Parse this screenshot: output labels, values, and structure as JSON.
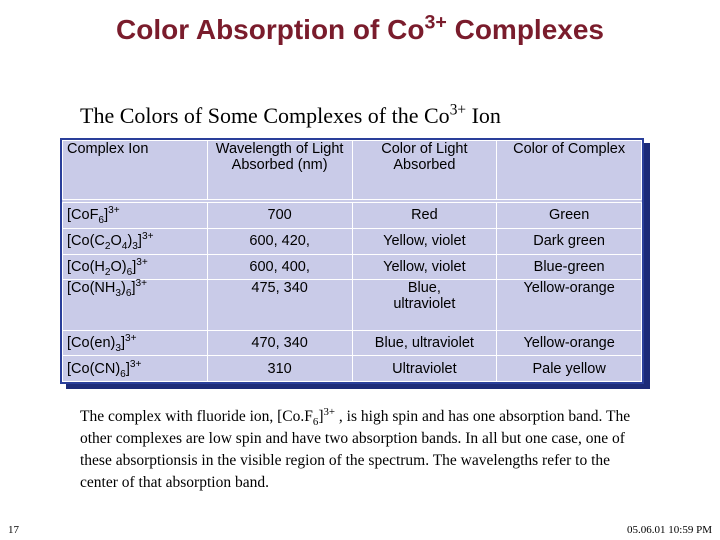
{
  "header": {
    "title": [
      {
        "text": "Color Absorption of Co"
      },
      {
        "text": "3+",
        "pos": "sup"
      },
      {
        "text": " Complexes"
      }
    ],
    "subtitle": [
      {
        "text": "The Colors of Some Complexes of the Co"
      },
      {
        "text": "3+",
        "pos": "sup"
      },
      {
        "text": " Ion"
      }
    ]
  },
  "table": {
    "columns": [
      "Complex Ion",
      "Wavelength of Light Absorbed (nm)",
      "Color of Light Absorbed",
      "Color of Complex"
    ],
    "rows": [
      [
        [
          {
            "text": "[CoF"
          },
          {
            "text": "6",
            "pos": "sub"
          },
          {
            "text": "]"
          },
          {
            "text": "3+",
            "pos": "sup"
          }
        ],
        "700",
        "Red",
        "Green"
      ],
      [
        [
          {
            "text": "[Co(C"
          },
          {
            "text": "2",
            "pos": "sub"
          },
          {
            "text": "O"
          },
          {
            "text": "4",
            "pos": "sub"
          },
          {
            "text": ")"
          },
          {
            "text": "3",
            "pos": "sub"
          },
          {
            "text": "]"
          },
          {
            "text": "3+",
            "pos": "sup"
          }
        ],
        "600, 420,",
        "Yellow, violet",
        "Dark green"
      ],
      [
        [
          {
            "text": "[Co(H"
          },
          {
            "text": "2",
            "pos": "sub"
          },
          {
            "text": "O)"
          },
          {
            "text": "6",
            "pos": "sub"
          },
          {
            "text": "]"
          },
          {
            "text": "3+",
            "pos": "sup"
          }
        ],
        "600, 400,",
        "Yellow, violet",
        "Blue-green"
      ],
      [
        [
          {
            "text": "[Co(NH"
          },
          {
            "text": "3",
            "pos": "sub"
          },
          {
            "text": ")"
          },
          {
            "text": "6",
            "pos": "sub"
          },
          {
            "text": "]"
          },
          {
            "text": "3+",
            "pos": "sup"
          }
        ],
        "475, 340",
        [
          "Blue,",
          "ultraviolet"
        ],
        "Yellow-orange"
      ],
      [
        [
          {
            "text": "[Co(en)"
          },
          {
            "text": "3",
            "pos": "sub"
          },
          {
            "text": "]"
          },
          {
            "text": "3+",
            "pos": "sup"
          }
        ],
        "470, 340",
        "Blue, ultraviolet",
        "Yellow-orange"
      ],
      [
        [
          {
            "text": "[Co(CN)"
          },
          {
            "text": "6",
            "pos": "sub"
          },
          {
            "text": "]"
          },
          {
            "text": "3+",
            "pos": "sup"
          }
        ],
        "310",
        "Ultraviolet",
        "Pale yellow"
      ]
    ]
  },
  "body": {
    "paragraph": [
      {
        "text": "The complex with fluoride ion, [Co.F"
      },
      {
        "text": "6",
        "pos": "sub"
      },
      {
        "text": "]"
      },
      {
        "text": "3+",
        "pos": "sup"
      },
      {
        "text": " , is high spin and has one absorption band. The other complexes are low spin and have two absorption bands. In all but one case, one of these absorptionsis in the visible region of the spectrum. The wavelengths refer to the center of that absorption band."
      }
    ]
  },
  "footer": {
    "page_number": "17",
    "timestamp": "05.06.01 10:59 PM"
  }
}
